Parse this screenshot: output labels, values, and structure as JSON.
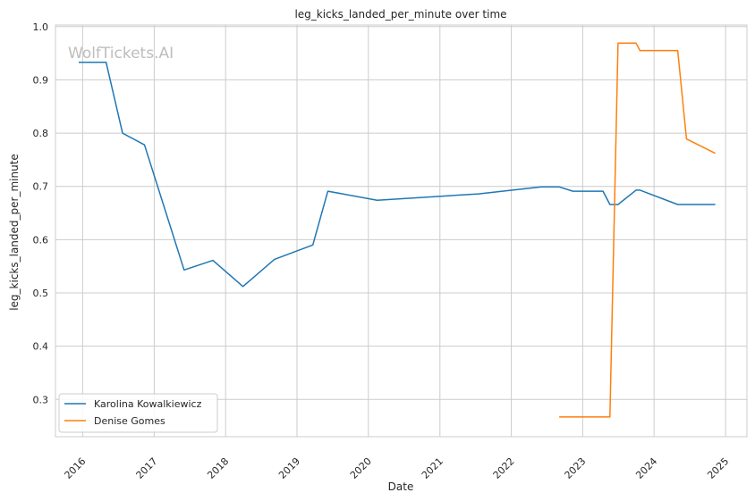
{
  "chart_data": {
    "type": "line",
    "title": "leg_kicks_landed_per_minute over time",
    "xlabel": "Date",
    "ylabel": "leg_kicks_landed_per_minute",
    "watermark": "WolfTickets.AI",
    "x_ticks": [
      "2016",
      "2017",
      "2018",
      "2019",
      "2020",
      "2021",
      "2022",
      "2023",
      "2024",
      "2025"
    ],
    "y_ticks": [
      "0.3",
      "0.4",
      "0.5",
      "0.6",
      "0.7",
      "0.8",
      "0.9",
      "1.0"
    ],
    "xlim": [
      "2015-08-15",
      "2025-04-20"
    ],
    "ylim": [
      0.23,
      1.003
    ],
    "grid": true,
    "legend_position": "lower-left",
    "series": [
      {
        "name": "Karolina Kowalkiewicz",
        "color": "#1f77b4",
        "points": [
          [
            "2015-12-12",
            0.933
          ],
          [
            "2016-04-30",
            0.933
          ],
          [
            "2016-07-23",
            0.8
          ],
          [
            "2016-11-12",
            0.778
          ],
          [
            "2017-06-03",
            0.543
          ],
          [
            "2017-10-28",
            0.561
          ],
          [
            "2018-03-31",
            0.512
          ],
          [
            "2018-09-08",
            0.563
          ],
          [
            "2019-03-23",
            0.59
          ],
          [
            "2019-06-08",
            0.691
          ],
          [
            "2020-02-15",
            0.674
          ],
          [
            "2021-07-17",
            0.686
          ],
          [
            "2022-06-04",
            0.699
          ],
          [
            "2022-09-03",
            0.699
          ],
          [
            "2022-11-12",
            0.691
          ],
          [
            "2023-04-15",
            0.691
          ],
          [
            "2023-05-20",
            0.666
          ],
          [
            "2023-07-01",
            0.666
          ],
          [
            "2023-10-01",
            0.693
          ],
          [
            "2023-10-21",
            0.693
          ],
          [
            "2024-05-01",
            0.666
          ],
          [
            "2024-11-09",
            0.666
          ]
        ]
      },
      {
        "name": "Denise Gomes",
        "color": "#ff7f0e",
        "points": [
          [
            "2022-09-03",
            0.267
          ],
          [
            "2023-05-20",
            0.267
          ],
          [
            "2023-07-01",
            0.969
          ],
          [
            "2023-10-01",
            0.969
          ],
          [
            "2023-10-21",
            0.955
          ],
          [
            "2024-05-01",
            0.955
          ],
          [
            "2024-06-15",
            0.789
          ],
          [
            "2024-11-09",
            0.762
          ]
        ]
      }
    ]
  }
}
